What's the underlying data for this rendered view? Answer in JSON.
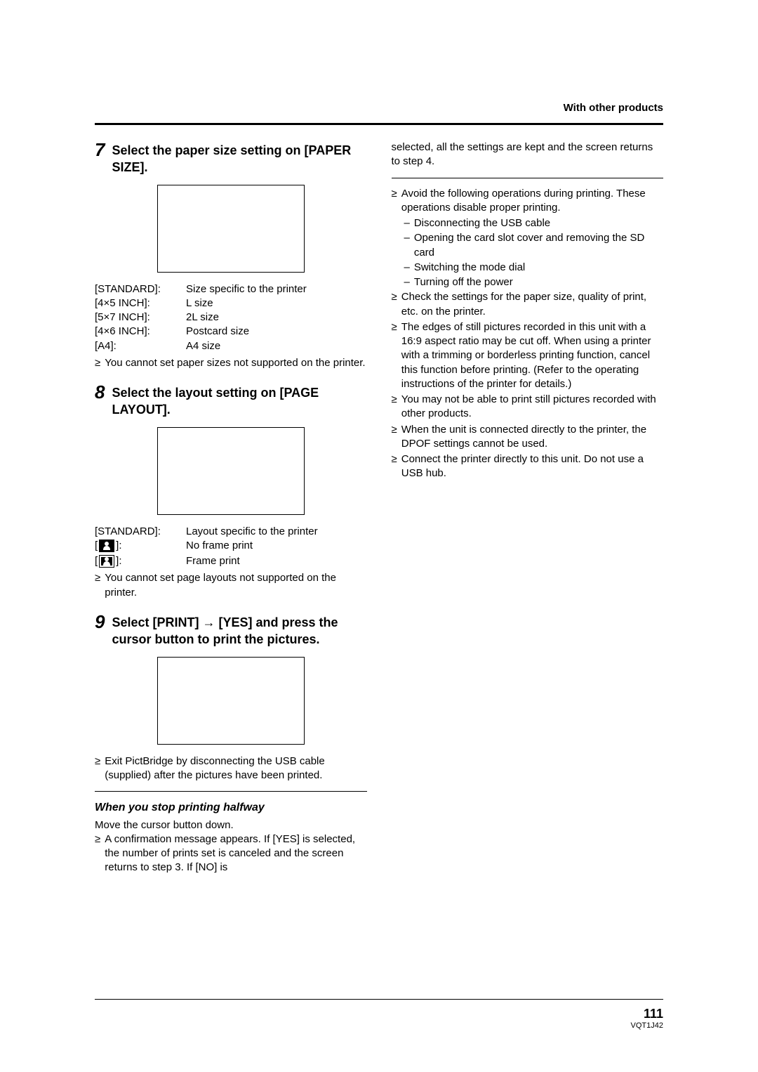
{
  "header": {
    "section": "With other products"
  },
  "left": {
    "step7": {
      "num": "7",
      "title": "Select the paper size setting on [PAPER SIZE].",
      "sizes": [
        {
          "label": "[STANDARD]:",
          "value": "Size specific to the printer"
        },
        {
          "label": "[4×5 INCH]:",
          "value": "L size"
        },
        {
          "label": "[5×7 INCH]:",
          "value": "2L size"
        },
        {
          "label": "[4×6 INCH]:",
          "value": "Postcard size"
        },
        {
          "label": "[A4]:",
          "value": "A4 size"
        }
      ],
      "note": "You cannot set paper sizes not supported on the printer."
    },
    "step8": {
      "num": "8",
      "title": "Select the layout setting on [PAGE LAYOUT].",
      "layouts": {
        "standard_label": "[STANDARD]:",
        "standard_value": "Layout specific to the printer",
        "noframe_bracket_open": "[",
        "noframe_bracket_close": "]:",
        "noframe_value": "No frame print",
        "frame_bracket_open": "[",
        "frame_bracket_close": "]:",
        "frame_value": "Frame print"
      },
      "note": "You cannot set page layouts not supported on the printer."
    },
    "step9": {
      "num": "9",
      "title": "Select [PRINT] → [YES] and press the cursor button to print the pictures.",
      "note": "Exit PictBridge by disconnecting the USB cable (supplied) after the pictures have been printed."
    },
    "stop": {
      "heading": "When you stop printing halfway",
      "line1": "Move the cursor button down.",
      "note": "A confirmation message appears. If [YES] is selected, the number of prints set is canceled and the screen returns to step 3. If [NO] is"
    }
  },
  "right": {
    "continued": "selected, all the settings are kept and the screen returns to step 4.",
    "notes": {
      "avoid": "Avoid the following operations during printing. These operations disable proper printing.",
      "sub1": "Disconnecting the USB cable",
      "sub2": "Opening the card slot cover and removing the SD card",
      "sub3": "Switching the mode dial",
      "sub4": "Turning off the power",
      "check": "Check the settings for the paper size, quality of print, etc. on the printer.",
      "edges": "The edges of still pictures recorded in this unit with a 16:9 aspect ratio may be cut off. When using a printer with a trimming or borderless printing function, cancel this function before printing. (Refer to the operating instructions of the printer for details.)",
      "maynot": "You may not be able to print still pictures recorded with other products.",
      "dpof": "When the unit is connected directly to the printer, the DPOF settings cannot be used.",
      "hub": "Connect the printer directly to this unit. Do not use a USB hub."
    }
  },
  "footer": {
    "page": "111",
    "code": "VQT1J42"
  }
}
